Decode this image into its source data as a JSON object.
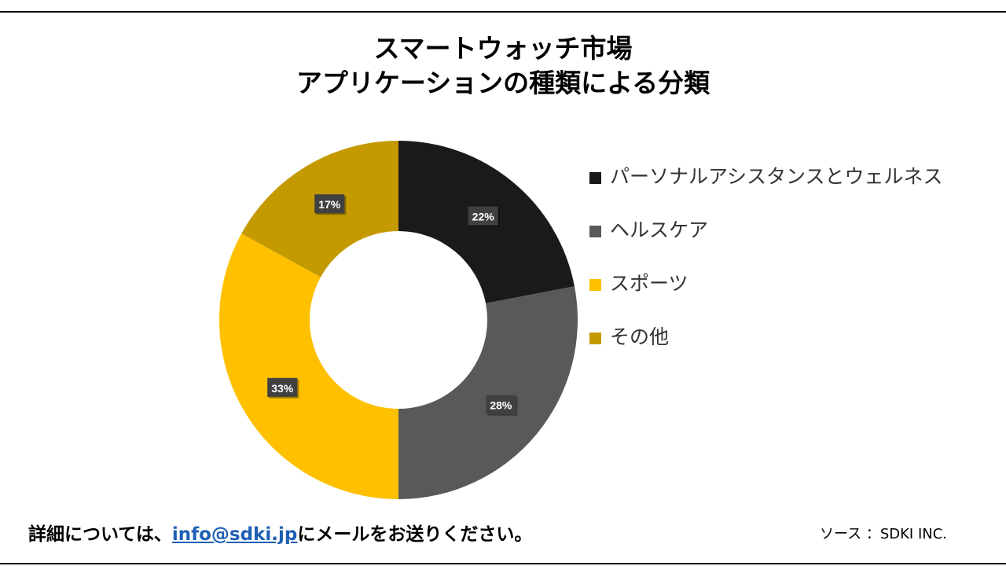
{
  "title_line1": "スマートウォッチ市場",
  "title_line2": "アプリケーションの種類による分類",
  "chart_data": {
    "type": "pie",
    "donut": true,
    "categories": [
      "パーソナルアシスタンスとウェルネス",
      "ヘルスケア",
      "スポーツ",
      "その他"
    ],
    "values": [
      22,
      28,
      33,
      17
    ],
    "labels": [
      "22%",
      "28%",
      "33%",
      "17%"
    ],
    "colors": [
      "#1a1a1a",
      "#595959",
      "#ffc000",
      "#c49a00"
    ],
    "legend_position": "right"
  },
  "footer": {
    "prefix": "詳細については、",
    "email": "info@sdki.jp",
    "suffix": "にメールをお送りください。"
  },
  "source": "ソース ：SDKI INC."
}
